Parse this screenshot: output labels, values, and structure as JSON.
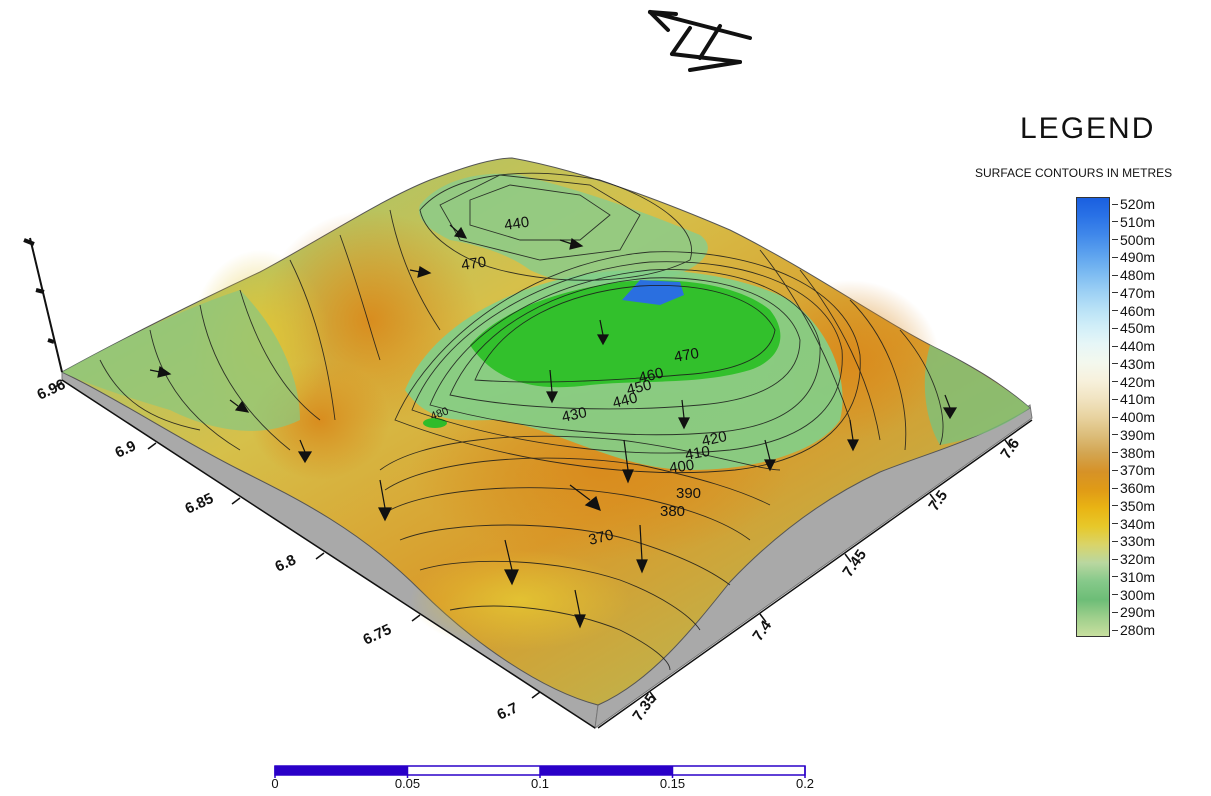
{
  "legend": {
    "title": "LEGEND",
    "subtitle": "SURFACE CONTOURS IN METRES",
    "entries": [
      {
        "label": "520m",
        "color": "#1a5fe0"
      },
      {
        "label": "510m",
        "color": "#2a72e6"
      },
      {
        "label": "500m",
        "color": "#3f87ea"
      },
      {
        "label": "490m",
        "color": "#5aa0ee"
      },
      {
        "label": "480m",
        "color": "#78b8f1"
      },
      {
        "label": "470m",
        "color": "#98cdf4"
      },
      {
        "label": "460m",
        "color": "#b6e0f6"
      },
      {
        "label": "450m",
        "color": "#d0eef8"
      },
      {
        "label": "440m",
        "color": "#e6f6f7"
      },
      {
        "label": "430m",
        "color": "#f3f8ee"
      },
      {
        "label": "420m",
        "color": "#f7f1dc"
      },
      {
        "label": "410m",
        "color": "#f1e4c2"
      },
      {
        "label": "400m",
        "color": "#e8d3a0"
      },
      {
        "label": "390m",
        "color": "#dcbd7a"
      },
      {
        "label": "380m",
        "color": "#d3a551"
      },
      {
        "label": "370m",
        "color": "#d69227"
      },
      {
        "label": "360m",
        "color": "#e09b16"
      },
      {
        "label": "350m",
        "color": "#e9b414"
      },
      {
        "label": "340m",
        "color": "#e7c82a"
      },
      {
        "label": "330m",
        "color": "#d9d46a"
      },
      {
        "label": "320m",
        "color": "#b9d7a0"
      },
      {
        "label": "310m",
        "color": "#86c98a"
      },
      {
        "label": "300m",
        "color": "#6dbd77"
      },
      {
        "label": "290m",
        "color": "#9fcf8c"
      },
      {
        "label": "280m",
        "color": "#c8df9f"
      }
    ]
  },
  "left_axis_ticks": [
    "6.96",
    "6.9",
    "6.85",
    "6.8",
    "6.75",
    "6.7"
  ],
  "right_axis_ticks": [
    "7.35",
    "7.4",
    "7.45",
    "7.5",
    "7.6"
  ],
  "contour_labels": [
    "440",
    "470",
    "470",
    "460",
    "450",
    "440",
    "430",
    "420",
    "410",
    "400",
    "390",
    "380",
    "370",
    "480"
  ],
  "scale_bar": {
    "labels": [
      "0",
      "0.05",
      "0.1",
      "0.15",
      "0.2"
    ],
    "fill_color": "#2a00c8"
  },
  "colors": {
    "side_wall": "#a9a9a9",
    "peak_blue": "#2a6fe0",
    "bright_green": "#2fbf2a",
    "orange": "#d98a1c"
  }
}
